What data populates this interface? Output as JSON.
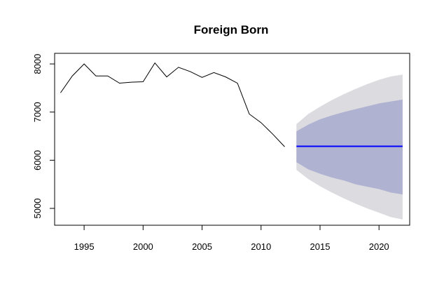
{
  "chart_data": {
    "type": "line",
    "title": "Foreign Born",
    "xlabel": "",
    "ylabel": "",
    "xlim": [
      1992.5,
      2022.6
    ],
    "ylim": [
      4650,
      8220
    ],
    "xticks": [
      1995,
      2000,
      2005,
      2010,
      2015,
      2020
    ],
    "yticks": [
      5000,
      6000,
      7000,
      8000
    ],
    "series": [
      {
        "x": [
          1993,
          1994,
          1995,
          1996,
          1997,
          1998,
          1999,
          2000,
          2001,
          2002,
          2003,
          2004,
          2005,
          2006,
          2007,
          2008,
          2009,
          2010,
          2011,
          2012
        ],
        "values": [
          7400,
          7750,
          8000,
          7750,
          7750,
          7600,
          7620,
          7630,
          8020,
          7730,
          7930,
          7840,
          7720,
          7820,
          7730,
          7600,
          6960,
          6780,
          6540,
          6280
        ],
        "color": "#000000"
      },
      {
        "x": [
          2013,
          2014,
          2015,
          2016,
          2017,
          2018,
          2019,
          2020,
          2021,
          2022
        ],
        "values": [
          6290,
          6290,
          6290,
          6290,
          6290,
          6290,
          6290,
          6290,
          6290,
          6290
        ],
        "color": "#0000ff"
      }
    ],
    "intervals": [
      {
        "x": [
          2013,
          2014,
          2015,
          2016,
          2017,
          2018,
          2019,
          2020,
          2021,
          2022
        ],
        "lower": [
          5800,
          5610,
          5460,
          5330,
          5210,
          5100,
          5000,
          4910,
          4820,
          4770
        ],
        "upper": [
          6750,
          6960,
          7110,
          7250,
          7370,
          7480,
          7580,
          7670,
          7740,
          7780
        ],
        "color": "#dbdbe0"
      },
      {
        "x": [
          2013,
          2014,
          2015,
          2016,
          2017,
          2018,
          2019,
          2020,
          2021,
          2022
        ],
        "lower": [
          5960,
          5810,
          5720,
          5640,
          5580,
          5500,
          5450,
          5400,
          5330,
          5290
        ],
        "upper": [
          6600,
          6740,
          6850,
          6930,
          7000,
          7060,
          7120,
          7180,
          7220,
          7260
        ],
        "color": "#b0b2d2"
      }
    ],
    "grid": false,
    "legend": "none"
  }
}
